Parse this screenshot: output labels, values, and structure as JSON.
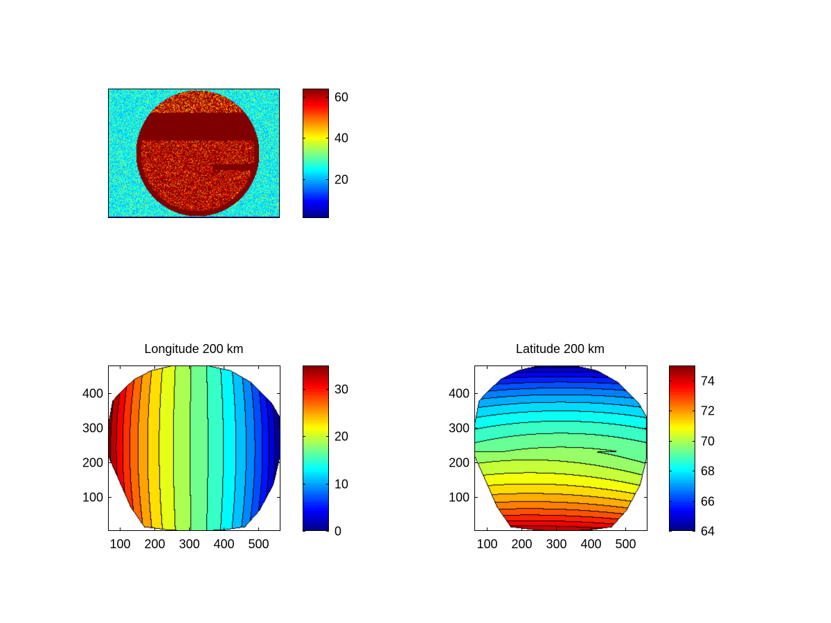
{
  "chart_data": [
    {
      "type": "heatmap",
      "title": "",
      "xlim": [
        1,
        640
      ],
      "ylim": [
        1,
        480
      ],
      "axis_ticks_visible": false,
      "colormap": "jet",
      "clim": [
        1,
        64
      ],
      "colorbar": {
        "ticks": [
          20,
          40,
          60
        ],
        "tick_labels": [
          "20",
          "40",
          "60"
        ]
      }
    },
    {
      "type": "contour",
      "title": "Longitude 200 km",
      "xlim": [
        65,
        565
      ],
      "ylim": [
        1,
        480
      ],
      "xticks": [
        100,
        200,
        300,
        400,
        500
      ],
      "xtick_labels": [
        "100",
        "200",
        "300",
        "400",
        "500"
      ],
      "yticks": [
        100,
        200,
        300,
        400
      ],
      "ytick_labels": [
        "100",
        "200",
        "300",
        "400"
      ],
      "colormap": "jet",
      "clim": [
        0,
        35
      ],
      "contour_levels_step": 2,
      "value_left_edge": 35,
      "value_right_edge": 0,
      "colorbar": {
        "ticks": [
          0,
          10,
          20,
          30
        ],
        "tick_labels": [
          "0",
          "10",
          "20",
          "30"
        ]
      }
    },
    {
      "type": "contour",
      "title": "Latitude 200 km",
      "xlim": [
        65,
        565
      ],
      "ylim": [
        1,
        480
      ],
      "xticks": [
        100,
        200,
        300,
        400,
        500
      ],
      "xtick_labels": [
        "100",
        "200",
        "300",
        "400",
        "500"
      ],
      "yticks": [
        100,
        200,
        300,
        400
      ],
      "ytick_labels": [
        "100",
        "200",
        "300",
        "400"
      ],
      "colormap": "jet",
      "clim": [
        64,
        75
      ],
      "contour_levels_step": 0.5,
      "value_top_edge": 64,
      "value_bottom_edge": 75,
      "colorbar": {
        "ticks": [
          64,
          66,
          68,
          70,
          72,
          74
        ],
        "tick_labels": [
          "64",
          "66",
          "68",
          "70",
          "72",
          "74"
        ]
      }
    }
  ]
}
